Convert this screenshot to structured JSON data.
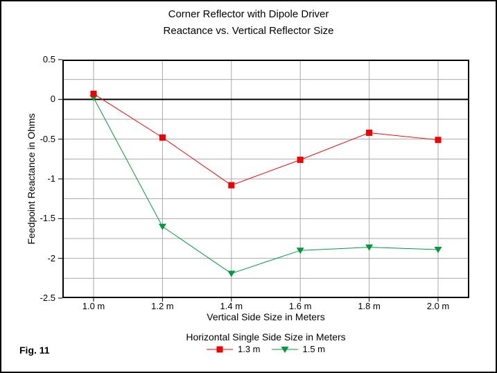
{
  "chart_data": {
    "type": "line",
    "title": "Corner Reflector with Dipole Driver",
    "subtitle": "Reactance vs. Vertical Reflector Size",
    "xlabel": "Vertical Side Size in Meters",
    "ylabel": "Feedpoint Reactance in Ohms",
    "legend_title": "Horizontal Single Side Size in Meters",
    "legend_position": "bottom",
    "categories": [
      "1.0 m",
      "1.2 m",
      "1.4 m",
      "1.6 m",
      "1.8 m",
      "2.0 m"
    ],
    "x_values": [
      1.0,
      1.2,
      1.4,
      1.6,
      1.8,
      2.0
    ],
    "series": [
      {
        "name": "1.3 m",
        "marker": "square",
        "color": "#f20000",
        "values": [
          0.07,
          -0.48,
          -1.08,
          -0.76,
          -0.42,
          -0.51
        ]
      },
      {
        "name": "1.5 m",
        "marker": "triangle-down",
        "color": "#009a3e",
        "values": [
          0.02,
          -1.6,
          -2.19,
          -1.9,
          -1.86,
          -1.89
        ]
      }
    ],
    "ylim": [
      -2.5,
      0.5
    ],
    "y_major_ticks": [
      0.5,
      0,
      -0.5,
      -1,
      -1.5,
      -2,
      -2.5
    ],
    "y_tick_labels": [
      "0.5",
      "0",
      "-0.5",
      "-1",
      "-1.5",
      "-2",
      "-2.5"
    ],
    "y_minor_step": 0.25,
    "grid": true,
    "zero_line_emphasized": true,
    "colors": {
      "grid": "#a9a9a9",
      "axis": "#000000",
      "background": "#ffffff"
    }
  },
  "footer": {
    "fig_label": "Fig. 11"
  }
}
